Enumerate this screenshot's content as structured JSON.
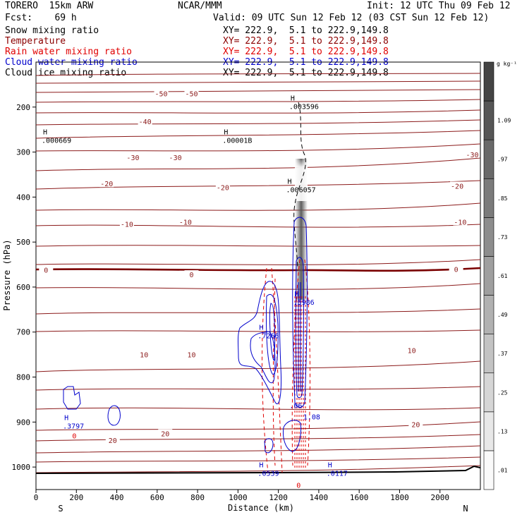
{
  "header": {
    "model": "TORERO  15km ARW",
    "org": "NCAR/MMM",
    "init": "Init: 12 UTC Thu 09 Feb 12",
    "fcst": "Fcst:    69 h",
    "valid": "Valid: 09 UTC Sun 12 Feb 12 (03 CST Sun 12 Feb 12)"
  },
  "fields": [
    {
      "name": "Snow mixing ratio",
      "xy": "XY= 222.9,  5.1 to 222.9,149.8",
      "color": "#000000"
    },
    {
      "name": "Temperature",
      "xy": "XY= 222.9,  5.1 to 222.9,149.8",
      "color": "#8b0000"
    },
    {
      "name": "Rain water mixing ratio",
      "xy": "XY= 222.9,  5.1 to 222.9,149.8",
      "color": "#ff0000"
    },
    {
      "name": "Cloud water mixing ratio",
      "xy": "XY= 222.9,  5.1 to 222.9,149.8",
      "color": "#0000cc"
    },
    {
      "name": "Cloud ice mixing ratio",
      "xy": "XY= 222.9,  5.1 to 222.9,149.8",
      "color": "#000000"
    }
  ],
  "chart_data": {
    "type": "cross-section",
    "xlabel": "Distance (km)",
    "ylabel": "Pressure (hPa)",
    "xlim": [
      0,
      2200
    ],
    "ylim": [
      1050,
      100
    ],
    "x_ticks": [
      0,
      200,
      400,
      600,
      800,
      1000,
      1200,
      1400,
      1600,
      1800,
      2000
    ],
    "y_ticks": [
      200,
      300,
      400,
      500,
      600,
      700,
      800,
      900,
      1000
    ],
    "end_labels": {
      "left": "S",
      "right": "N"
    },
    "colorbar": {
      "units": "g kg⁻¹",
      "ticks": [
        ".01",
        ".13",
        ".25",
        ".37",
        ".49",
        ".61",
        ".73",
        ".85",
        ".97",
        "1.09"
      ]
    },
    "temperature_labels": [
      {
        "value": "-50",
        "x": 620,
        "p": 170
      },
      {
        "value": "-50",
        "x": 770,
        "p": 170
      },
      {
        "value": "-40",
        "x": 540,
        "p": 232
      },
      {
        "value": "-30",
        "x": 480,
        "p": 312
      },
      {
        "value": "-30",
        "x": 690,
        "p": 312
      },
      {
        "value": "-30",
        "x": 2160,
        "p": 305
      },
      {
        "value": "-20",
        "x": 350,
        "p": 370
      },
      {
        "value": "-20",
        "x": 925,
        "p": 378
      },
      {
        "value": "-20",
        "x": 2085,
        "p": 375
      },
      {
        "value": "-10",
        "x": 450,
        "p": 460
      },
      {
        "value": "-10",
        "x": 740,
        "p": 455
      },
      {
        "value": "-10",
        "x": 2100,
        "p": 455
      },
      {
        "value": "0",
        "x": 50,
        "p": 562
      },
      {
        "value": "0",
        "x": 770,
        "p": 572
      },
      {
        "value": "0",
        "x": 2080,
        "p": 560
      },
      {
        "value": "10",
        "x": 535,
        "p": 750
      },
      {
        "value": "10",
        "x": 770,
        "p": 750
      },
      {
        "value": "10",
        "x": 1860,
        "p": 740
      },
      {
        "value": "20",
        "x": 640,
        "p": 925
      },
      {
        "value": "20",
        "x": 380,
        "p": 940
      },
      {
        "value": "20",
        "x": 1880,
        "p": 905
      }
    ],
    "maxima": [
      {
        "label": "H",
        "value": ".000669",
        "x": 35,
        "p": 265,
        "color": "#000000"
      },
      {
        "label": "H",
        "value": ".00001B",
        "x": 930,
        "p": 265,
        "color": "#000000"
      },
      {
        "label": "H",
        "value": ".003596",
        "x": 1260,
        "p": 190,
        "color": "#000000"
      },
      {
        "label": "H",
        "value": ".006057",
        "x": 1245,
        "p": 375,
        "color": "#000000"
      },
      {
        "label": "H",
        "value": ".7266",
        "x": 1105,
        "p": 700,
        "color": "#0000cc"
      },
      {
        "label": "H",
        "value": ".5986",
        "x": 1280,
        "p": 625,
        "color": "#0000cc"
      },
      {
        "label": "H",
        "value": ".3797",
        "x": 140,
        "p": 900,
        "color": "#0000cc"
      },
      {
        "label": "H",
        "value": ".0117",
        "x": 1445,
        "p": 1005,
        "color": "#0000cc"
      },
      {
        "label": "H",
        "value": ".0539",
        "x": 1105,
        "p": 1005,
        "color": "#0000cc"
      },
      {
        "label": "",
        "value": ".06",
        "x": 1262,
        "p": 855,
        "color": "#0000cc"
      },
      {
        "label": "",
        "value": "1.08",
        "x": 1330,
        "p": 880,
        "color": "#0000cc"
      }
    ],
    "rain_labels": [
      {
        "value": "0",
        "x": 190,
        "p": 930
      },
      {
        "value": "0",
        "x": 1300,
        "p": 1040
      }
    ]
  }
}
